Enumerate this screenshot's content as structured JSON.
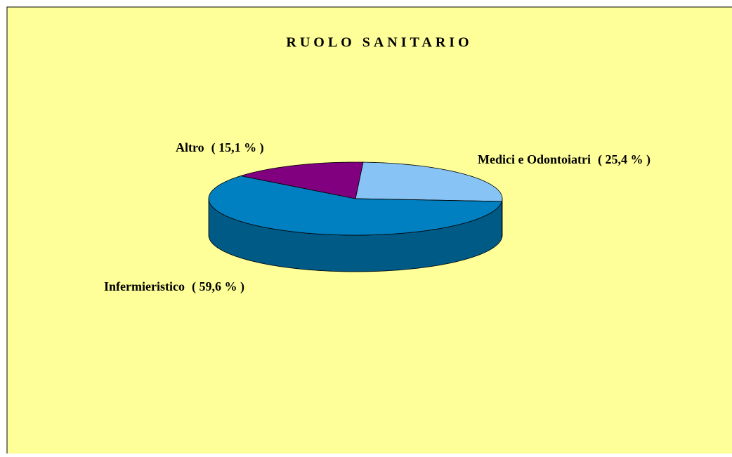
{
  "chart_data": {
    "type": "pie",
    "title": "RUOLO SANITARIO",
    "categories": [
      "Medici e Odontoiatri",
      "Infermieristico",
      "Altro"
    ],
    "values": [
      25.4,
      59.6,
      15.1
    ],
    "value_labels": [
      "( 25,4 % )",
      "( 59,6 % )",
      "( 15,1 % )"
    ],
    "colors": [
      "#87c4f5",
      "#0080c0",
      "#800080"
    ]
  }
}
